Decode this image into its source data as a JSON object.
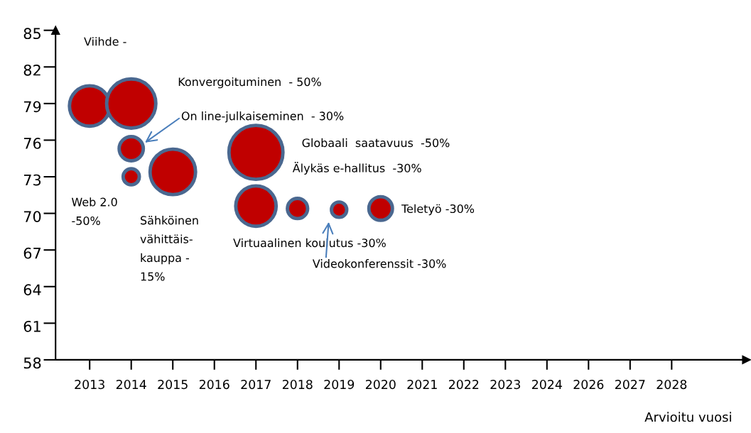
{
  "chart_data": {
    "type": "bubble",
    "categories": [
      "2013",
      "2014",
      "2015",
      "2016",
      "2017",
      "2018",
      "2019",
      "2020",
      "2021",
      "2022",
      "2023",
      "2024",
      "2026",
      "2027",
      "2028"
    ],
    "series": [
      {
        "color": "#c00000",
        "values": [
          78.8,
          79,
          73.4,
          null,
          75,
          70.4,
          70.3,
          70.4,
          null,
          null,
          null,
          null,
          null,
          null,
          null
        ],
        "sizes": [
          0.56,
          0.83,
          0.71,
          null,
          1,
          0.14,
          0.08,
          0.19,
          null,
          null,
          null,
          null,
          null,
          null,
          null
        ]
      },
      {
        "color": "#c00000",
        "values": [
          null,
          75.3,
          null,
          null,
          70.6,
          null,
          null,
          null,
          null,
          null,
          null,
          null,
          null,
          null,
          null
        ],
        "sizes": [
          null,
          0.2,
          null,
          null,
          0.56,
          null,
          null,
          null,
          null,
          null,
          null,
          null,
          null,
          null,
          null
        ]
      },
      {
        "color": "#c00000",
        "values": [
          null,
          73,
          null,
          null,
          null,
          null,
          null,
          null,
          null,
          null,
          null,
          null,
          null,
          null,
          null
        ],
        "sizes": [
          null,
          0.09,
          null,
          null,
          null,
          null,
          null,
          null,
          null,
          null,
          null,
          null,
          null,
          null,
          null
        ]
      }
    ],
    "ylim": [
      58,
      85
    ],
    "yticks": [
      58,
      61,
      64,
      67,
      70,
      73,
      76,
      79,
      82,
      85
    ],
    "xlabel": "Arvioitu vuosi",
    "annotations": [
      "Viihde -",
      "Konvergoituminen  - 50%",
      "On line-julkaiseminen  - 30%",
      "Globaali  saatavuus  -50%",
      "Älykäs e-hallitus  -30%",
      "Web 2.0\n-50%",
      "Sähköinen\nvähittäis-\nkauppa -\n15%",
      "Teletyö -30%",
      "Virtuaalinen koulutus -30%",
      "Videokonferenssit -30%"
    ],
    "grid": false,
    "legend": false
  }
}
